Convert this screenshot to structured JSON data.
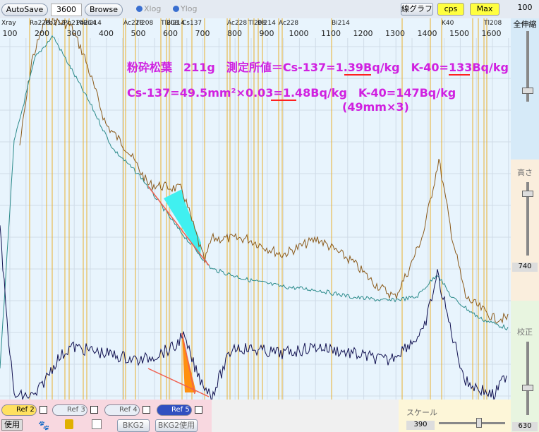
{
  "toolbar": {
    "autosave": "AutoSave",
    "time": "3600",
    "browse": "Browse",
    "xlog": "Xlog",
    "ylog": "Ylog",
    "graph": "線グラフ",
    "cps": "cps",
    "max": "Max"
  },
  "x_axis": {
    "ticks": [
      100,
      200,
      300,
      400,
      500,
      600,
      700,
      800,
      900,
      1000,
      1100,
      1200,
      1300,
      1400,
      1500,
      1600
    ]
  },
  "peaks": [
    "Xray",
    "Ra226",
    "Pb212",
    "Pb214",
    "Pb214",
    "Bi214",
    "Ac228",
    "Tl208",
    "Tl208",
    "Bi214",
    "Cs137",
    "Ac228",
    "Tl208",
    "Bi214",
    "Ac228",
    "Bi214",
    "K40",
    "Tl208"
  ],
  "annotations": [
    "粉砕松葉　211g　測定所値＝Cs-137=1.39Bq/kg　K-40=133Bq/kg",
    "Cs-137=49.5mm²×0.03=1.48Bq/kg　K-40=147Bq/kg",
    "(49mm×3)"
  ],
  "side": {
    "top_value": "100",
    "zoom": "全伸縮",
    "height": "高さ",
    "height_value": "740",
    "calib": "校正",
    "calib_value": "630"
  },
  "bottom": {
    "refs": [
      "Ref 2",
      "Ref 3",
      "Ref 4",
      "Ref 5"
    ],
    "use": "使用",
    "bkg2": "BKG2",
    "bkg2_use": "BKG2使用",
    "scale": "スケール",
    "scale_value": "390"
  }
}
